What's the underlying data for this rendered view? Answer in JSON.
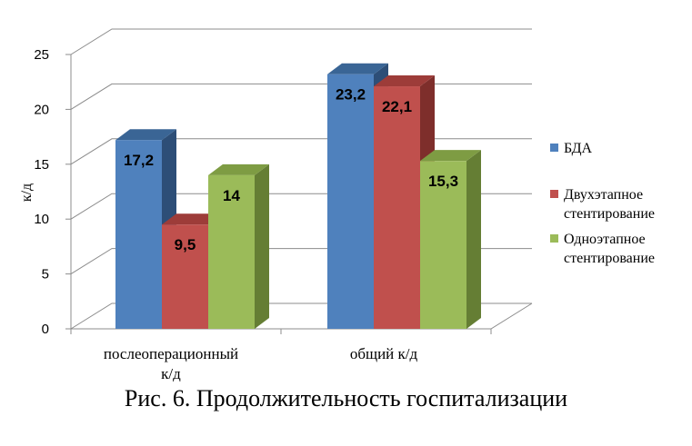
{
  "caption": "Рис. 6. Продолжительность  госпитализации",
  "chart_data": {
    "type": "bar",
    "style": "3d-clustered-column",
    "ylabel": "к/д",
    "ylim": [
      0,
      25
    ],
    "yticks": [
      0,
      5,
      10,
      15,
      20,
      25
    ],
    "gridlines": true,
    "legend_position": "right",
    "categories": [
      [
        "послеоперационный",
        "к/д"
      ],
      [
        "общий к/д"
      ]
    ],
    "series": [
      {
        "name": "БДА",
        "values": [
          17.2,
          23.2
        ],
        "labels": [
          "17,2",
          "23,2"
        ],
        "color": "#4F81BD",
        "top": "#3A6595",
        "side": "#2D4E77"
      },
      {
        "name": "Двухэтапное стентирование",
        "legend_lines": [
          "Двухэтапное",
          "стентирование"
        ],
        "values": [
          9.5,
          22.1
        ],
        "labels": [
          "9,5",
          "22,1"
        ],
        "color": "#C0504D",
        "top": "#9D3C39",
        "side": "#7E2E2B"
      },
      {
        "name": "Одноэтапное стентирование",
        "legend_lines": [
          "Одноэтапное",
          "стентирование"
        ],
        "values": [
          14,
          15.3
        ],
        "labels": [
          "14",
          "15,3"
        ],
        "color": "#9BBB59",
        "top": "#7E9C43",
        "side": "#657E34"
      }
    ]
  }
}
